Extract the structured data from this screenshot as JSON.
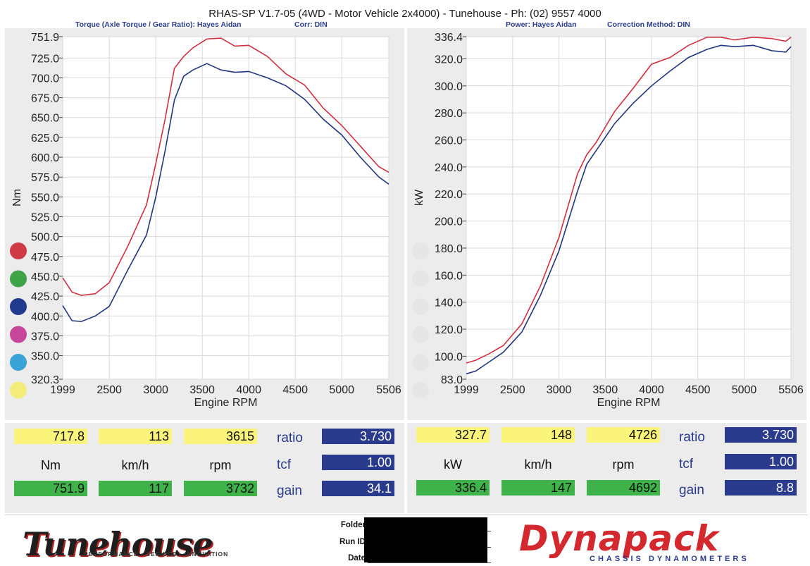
{
  "header": {
    "title": "RHAS-SP V1.7-05   (4WD - Motor Vehicle 2x4000) - Tunehouse - Ph: (02) 9557 4000",
    "left_sub": "Torque (Axle Torque / Gear Ratio): Hayes Aidan",
    "left_corr": "Corr: DIN",
    "right_sub": "Power: Hayes Aidan",
    "right_corr": "Correction Method: DIN"
  },
  "swatches": {
    "left": [
      "#cf3a45",
      "#3ea447",
      "#223a8e",
      "#c7469a",
      "#3aa4d6",
      "#f4ec7a"
    ],
    "right": [
      "#e6e6e6",
      "#e6e6e6",
      "#e6e6e6",
      "#e6e6e6",
      "#e6e6e6",
      "#e6e6e6"
    ]
  },
  "chart_data": [
    {
      "type": "line",
      "xlabel": "Engine RPM",
      "ylabel": "Nm",
      "xlim": [
        1999,
        5506
      ],
      "ylim": [
        320.3,
        751.9
      ],
      "xticks": [
        "1999",
        "2500",
        "3000",
        "3500",
        "4000",
        "4500",
        "5000",
        "5506"
      ],
      "yticks": [
        "320.3",
        "350.0",
        "375.0",
        "400.0",
        "425.0",
        "450.0",
        "475.0",
        "500.0",
        "525.0",
        "550.0",
        "575.0",
        "600.0",
        "625.0",
        "650.0",
        "675.0",
        "700.0",
        "725.0",
        "751.9"
      ],
      "grid": true,
      "series": [
        {
          "color": "#d03040",
          "x": [
            1999,
            2100,
            2200,
            2350,
            2500,
            2700,
            2900,
            3000,
            3100,
            3200,
            3300,
            3400,
            3550,
            3700,
            3850,
            4000,
            4200,
            4400,
            4600,
            4800,
            5000,
            5200,
            5400,
            5506
          ],
          "y": [
            448,
            430,
            426,
            428,
            442,
            488,
            540,
            592,
            648,
            712,
            727,
            738,
            749,
            750,
            740,
            741,
            727,
            705,
            691,
            662,
            640,
            614,
            588,
            581
          ]
        },
        {
          "color": "#22357f",
          "x": [
            1999,
            2100,
            2200,
            2350,
            2500,
            2700,
            2900,
            3000,
            3100,
            3200,
            3300,
            3400,
            3550,
            3700,
            3850,
            4000,
            4200,
            4400,
            4600,
            4800,
            5000,
            5200,
            5400,
            5506
          ],
          "y": [
            413,
            394,
            393,
            400,
            412,
            458,
            502,
            550,
            608,
            672,
            702,
            710,
            718,
            710,
            707,
            708,
            700,
            690,
            673,
            648,
            628,
            600,
            575,
            566
          ]
        }
      ]
    },
    {
      "type": "line",
      "xlabel": "Engine RPM",
      "ylabel": "kW",
      "xlim": [
        1999,
        5506
      ],
      "ylim": [
        83.0,
        336.4
      ],
      "xticks": [
        "1999",
        "2500",
        "3000",
        "3500",
        "4000",
        "4500",
        "5000",
        "5506"
      ],
      "yticks": [
        "83.0",
        "100.0",
        "120.0",
        "140.0",
        "160.0",
        "180.0",
        "200.0",
        "220.0",
        "240.0",
        "260.0",
        "280.0",
        "300.0",
        "320.0",
        "336.4"
      ],
      "grid": true,
      "series": [
        {
          "color": "#d03040",
          "x": [
            1999,
            2100,
            2250,
            2400,
            2600,
            2800,
            3000,
            3200,
            3300,
            3400,
            3600,
            3800,
            4000,
            4200,
            4400,
            4600,
            4750,
            4900,
            5100,
            5300,
            5450,
            5506
          ],
          "y": [
            95,
            97,
            102,
            108,
            124,
            152,
            188,
            235,
            249,
            258,
            281,
            298,
            316,
            321,
            330,
            336,
            336,
            334,
            336,
            335,
            333,
            336
          ]
        },
        {
          "color": "#22357f",
          "x": [
            1999,
            2100,
            2250,
            2400,
            2600,
            2800,
            3000,
            3200,
            3300,
            3400,
            3600,
            3800,
            4000,
            4200,
            4400,
            4600,
            4750,
            4900,
            5100,
            5300,
            5450,
            5506
          ],
          "y": [
            87,
            89,
            96,
            103,
            118,
            145,
            178,
            222,
            242,
            252,
            272,
            287,
            300,
            311,
            321,
            327,
            330,
            329,
            330,
            326,
            325,
            329
          ]
        }
      ]
    }
  ],
  "readouts": {
    "left": {
      "row1": [
        "717.8",
        "113",
        "3615"
      ],
      "units": [
        "Nm",
        "km/h",
        "rpm"
      ],
      "row3": [
        "751.9",
        "117",
        "3732"
      ],
      "ratio_label": "ratio",
      "ratio": "3.730",
      "tcf_label": "tcf",
      "tcf": "1.00",
      "gain_label": "gain",
      "gain": "34.1"
    },
    "right": {
      "row1": [
        "327.7",
        "148",
        "4726"
      ],
      "units": [
        "kW",
        "km/h",
        "rpm"
      ],
      "row3": [
        "336.4",
        "147",
        "4692"
      ],
      "ratio_label": "ratio",
      "ratio": "3.730",
      "tcf_label": "tcf",
      "tcf": "1.00",
      "gain_label": "gain",
      "gain": "8.8"
    }
  },
  "footer": {
    "tune_logo": "Tunehouse",
    "tune_tagline": "PERFORMANCE • SERVICE • INNOVATION",
    "folder_label": "Folder",
    "runid_label": "Run ID",
    "date_label": "Date",
    "dyna_logo": "Dynapack",
    "dyna_tagline": "CHASSIS   DYNAMOMETERS"
  }
}
